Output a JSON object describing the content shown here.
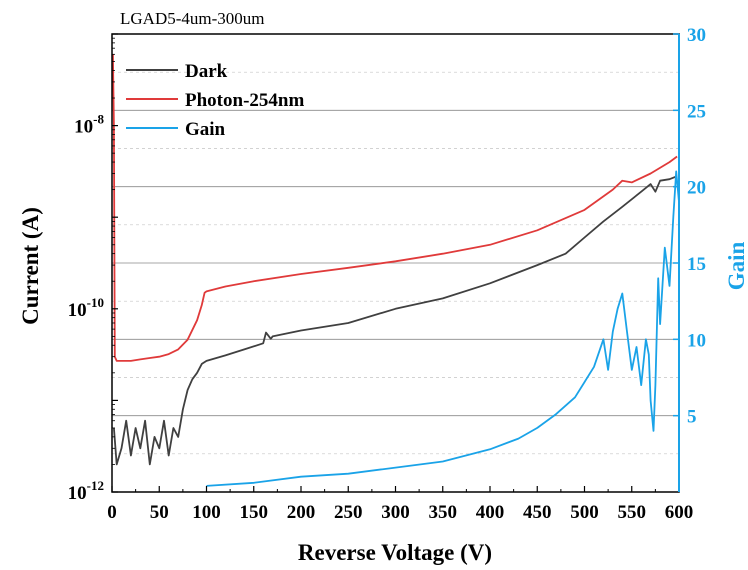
{
  "chart_data": {
    "type": "line",
    "title": "LGAD5-4um-300um",
    "xlabel": "Reverse Voltage (V)",
    "ylabel_left": "Current (A)",
    "ylabel_right": "Gain",
    "xlim": [
      0,
      600
    ],
    "ylim_left": [
      1e-12,
      1e-07
    ],
    "yscale_left": "log",
    "ylim_right": [
      0,
      30
    ],
    "x_ticks": [
      0,
      50,
      100,
      150,
      200,
      250,
      300,
      350,
      400,
      450,
      500,
      550,
      600
    ],
    "y_left_ticks": [
      {
        "base": "10",
        "exp": "-12",
        "value": 1e-12
      },
      {
        "base": "10",
        "exp": "-10",
        "value": 1e-10
      },
      {
        "base": "10",
        "exp": "-8",
        "value": 1e-08
      }
    ],
    "y_right_ticks": [
      5,
      10,
      15,
      20,
      25,
      30
    ],
    "grid": "horizontal dashed",
    "legend_position": "top-left",
    "series": [
      {
        "name": "Dark",
        "axis": "left",
        "color": "#404040",
        "x": [
          2,
          5,
          10,
          15,
          20,
          25,
          30,
          35,
          40,
          45,
          50,
          55,
          60,
          65,
          70,
          75,
          80,
          85,
          90,
          95,
          100,
          120,
          140,
          160,
          163,
          168,
          170,
          200,
          250,
          300,
          350,
          400,
          450,
          480,
          500,
          520,
          540,
          560,
          570,
          575,
          580,
          590,
          598
        ],
        "y": [
          5e-12,
          2e-12,
          3e-12,
          6e-12,
          2.5e-12,
          5e-12,
          3e-12,
          6e-12,
          2e-12,
          4e-12,
          3e-12,
          6e-12,
          2.5e-12,
          5e-12,
          4e-12,
          8e-12,
          1.3e-11,
          1.7e-11,
          2e-11,
          2.5e-11,
          2.7e-11,
          3.1e-11,
          3.6e-11,
          4.2e-11,
          5.5e-11,
          4.7e-11,
          5e-11,
          5.8e-11,
          7e-11,
          1e-10,
          1.3e-10,
          1.9e-10,
          3e-10,
          4e-10,
          6e-10,
          9e-10,
          1.3e-09,
          1.9e-09,
          2.3e-09,
          1.9e-09,
          2.5e-09,
          2.6e-09,
          2.8e-09
        ]
      },
      {
        "name": "Photon-254nm",
        "axis": "left",
        "color": "#e03a3a",
        "x": [
          1,
          2,
          3,
          5,
          10,
          20,
          30,
          40,
          50,
          60,
          70,
          80,
          90,
          95,
          98,
          100,
          120,
          150,
          200,
          250,
          300,
          350,
          400,
          450,
          500,
          530,
          540,
          550,
          570,
          590,
          598
        ],
        "y": [
          6e-08,
          1e-08,
          3e-11,
          2.7e-11,
          2.7e-11,
          2.7e-11,
          2.8e-11,
          2.9e-11,
          3e-11,
          3.2e-11,
          3.6e-11,
          4.6e-11,
          7.5e-11,
          1.1e-10,
          1.5e-10,
          1.55e-10,
          1.75e-10,
          2e-10,
          2.4e-10,
          2.8e-10,
          3.3e-10,
          4e-10,
          5e-10,
          7.2e-10,
          1.2e-09,
          2e-09,
          2.5e-09,
          2.4e-09,
          3e-09,
          4e-09,
          4.6e-09
        ]
      },
      {
        "name": "Gain",
        "axis": "right",
        "color": "#1aa3e8",
        "x": [
          100,
          150,
          200,
          250,
          300,
          350,
          400,
          430,
          450,
          470,
          490,
          500,
          510,
          520,
          525,
          530,
          535,
          540,
          545,
          550,
          555,
          560,
          565,
          568,
          570,
          573,
          575,
          578,
          580,
          585,
          590,
          594,
          597,
          600
        ],
        "y": [
          0.4,
          0.6,
          1.0,
          1.2,
          1.6,
          2.0,
          2.8,
          3.5,
          4.2,
          5.1,
          6.2,
          7.2,
          8.2,
          10.0,
          8.0,
          10.5,
          12.0,
          13.0,
          10.5,
          8.0,
          9.5,
          7.0,
          10.0,
          9.0,
          6.0,
          4.0,
          7.0,
          14.0,
          11.0,
          16.0,
          13.5,
          18.0,
          21.0,
          19.0
        ]
      }
    ]
  }
}
